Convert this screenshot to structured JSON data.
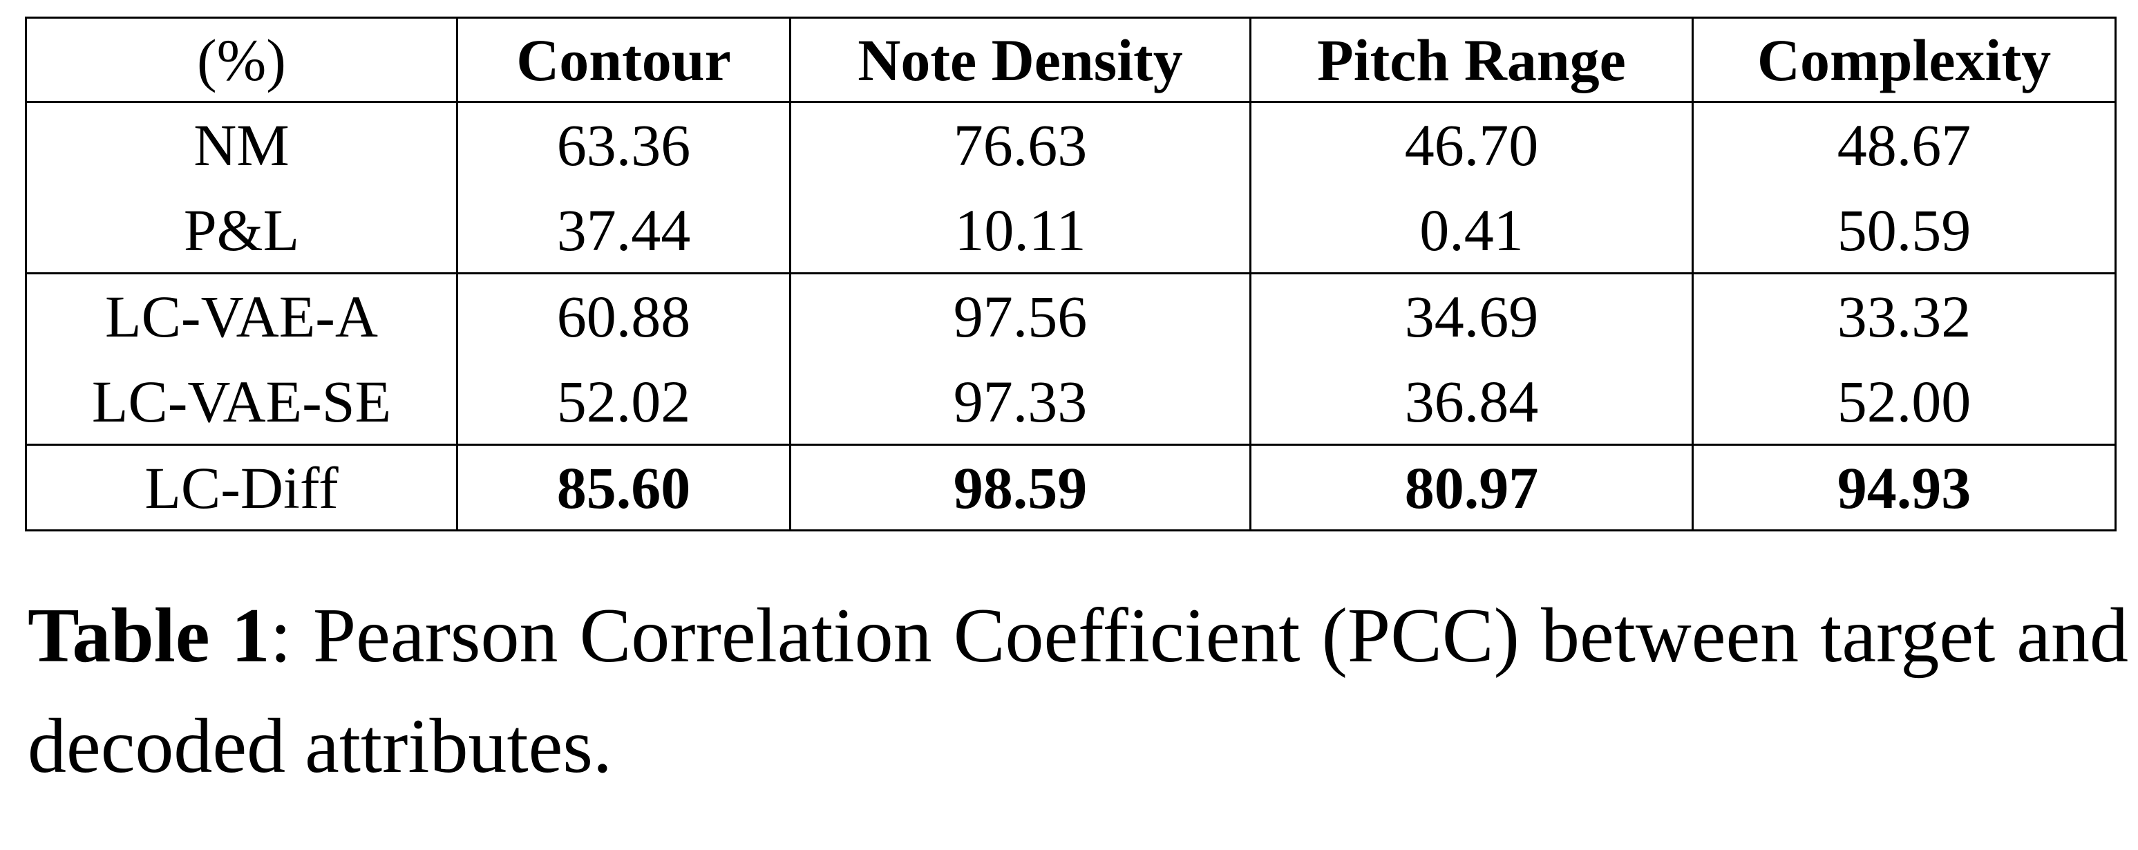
{
  "table": {
    "header": [
      "(%)",
      "Contour",
      "Note Density",
      "Pitch Range",
      "Complexity"
    ],
    "groups": [
      [
        {
          "method": "NM",
          "values": [
            "63.36",
            "76.63",
            "46.70",
            "48.67"
          ]
        },
        {
          "method": "P&L",
          "values": [
            "37.44",
            "10.11",
            "0.41",
            "50.59"
          ]
        }
      ],
      [
        {
          "method": "LC-VAE-A",
          "values": [
            "60.88",
            "97.56",
            "34.69",
            "33.32"
          ]
        },
        {
          "method": "LC-VAE-SE",
          "values": [
            "52.02",
            "97.33",
            "36.84",
            "52.00"
          ]
        }
      ],
      [
        {
          "method": "LC-Diff",
          "values": [
            "85.60",
            "98.59",
            "80.97",
            "94.93"
          ]
        }
      ]
    ]
  },
  "caption": {
    "label": "Table 1",
    "separator": ":",
    "text": "Pearson Correlation Coefficient (PCC) between target and decoded attributes."
  }
}
